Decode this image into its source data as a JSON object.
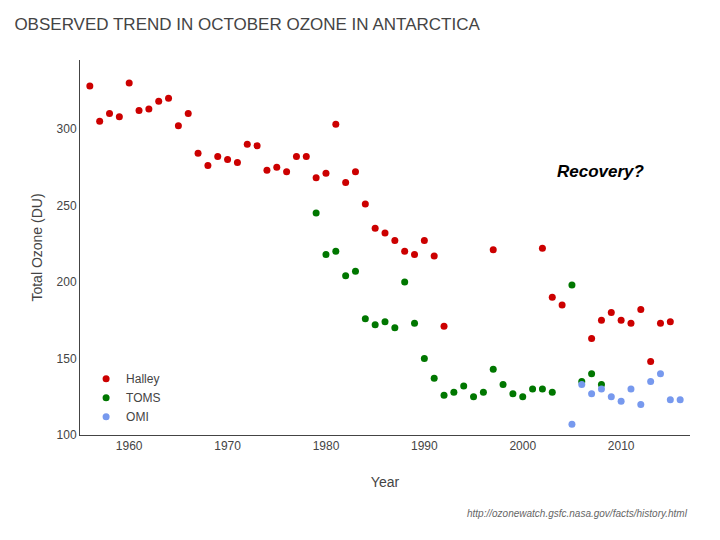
{
  "chart_data": {
    "type": "scatter",
    "title": "OBSERVED TREND IN OCTOBER OZONE IN ANTARCTICA",
    "x_label": "Year",
    "y_label": "Total Ozone (DU)",
    "annotations": [
      {
        "text": "Recovery?",
        "x": 2008,
        "y": 272
      },
      {
        "text": "http://ozonewatch.gsfc.nasa.gov/facts/history.html"
      }
    ],
    "xlim": [
      1955,
      2017
    ],
    "ylim": [
      100,
      345
    ],
    "xticks": [
      1960,
      1970,
      1980,
      1990,
      2000,
      2010
    ],
    "yticks": [
      100,
      150,
      200,
      250,
      300
    ],
    "grid": false,
    "legend": "lower left",
    "series": [
      {
        "name": "Halley",
        "color": "#cc0000",
        "x": [
          1956,
          1957,
          1958,
          1959,
          1960,
          1961,
          1962,
          1963,
          1964,
          1965,
          1966,
          1967,
          1968,
          1969,
          1970,
          1971,
          1972,
          1973,
          1974,
          1975,
          1976,
          1977,
          1978,
          1979,
          1980,
          1981,
          1982,
          1983,
          1984,
          1985,
          1986,
          1987,
          1988,
          1989,
          1990,
          1991,
          1992,
          1997,
          2002,
          2003,
          2004,
          2007,
          2008,
          2009,
          2010,
          2011,
          2012,
          2013,
          2014,
          2015
        ],
        "values": [
          328,
          305,
          310,
          308,
          330,
          312,
          313,
          318,
          320,
          302,
          310,
          284,
          276,
          282,
          280,
          278,
          290,
          289,
          273,
          275,
          272,
          282,
          282,
          268,
          271,
          303,
          265,
          272,
          251,
          235,
          232,
          227,
          220,
          218,
          227,
          217,
          171,
          221,
          222,
          190,
          185,
          163,
          175,
          180,
          175,
          173,
          182,
          148,
          173,
          174
        ]
      },
      {
        "name": "TOMS",
        "color": "#007700",
        "x": [
          1979,
          1980,
          1981,
          1982,
          1983,
          1984,
          1985,
          1986,
          1987,
          1988,
          1989,
          1990,
          1991,
          1992,
          1993,
          1994,
          1995,
          1996,
          1997,
          1998,
          1999,
          2000,
          2001,
          2002,
          2003,
          2005,
          2006,
          2007,
          2008
        ],
        "values": [
          245,
          218,
          220,
          204,
          207,
          176,
          172,
          174,
          170,
          200,
          173,
          150,
          137,
          126,
          128,
          132,
          125,
          128,
          143,
          133,
          127,
          125,
          130,
          130,
          128,
          198,
          135,
          140,
          133
        ]
      },
      {
        "name": "OMI",
        "color": "#7799ee",
        "x": [
          2005,
          2006,
          2007,
          2008,
          2009,
          2010,
          2011,
          2012,
          2013,
          2014,
          2015,
          2016
        ],
        "values": [
          107,
          133,
          127,
          130,
          125,
          122,
          130,
          120,
          135,
          140,
          123,
          123
        ]
      }
    ]
  }
}
